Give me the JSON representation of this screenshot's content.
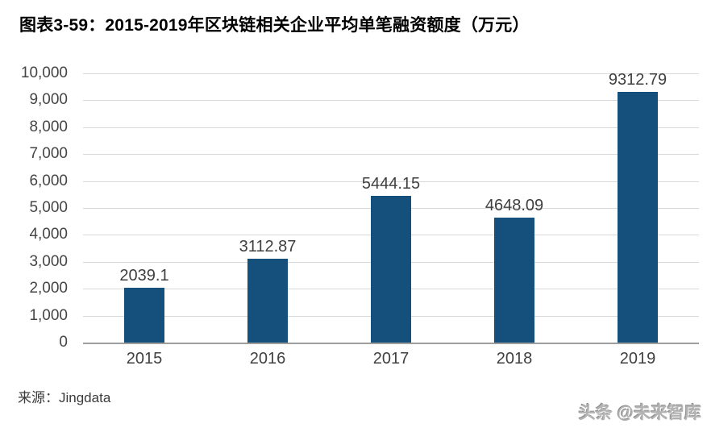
{
  "chart_data": {
    "type": "bar",
    "title": "图表3-59：2015-2019年区块链相关企业平均单笔融资额度（万元）",
    "categories": [
      "2015",
      "2016",
      "2017",
      "2018",
      "2019"
    ],
    "values": [
      2039.1,
      3112.87,
      5444.15,
      4648.09,
      9312.79
    ],
    "data_labels": [
      "2039.1",
      "3112.87",
      "5444.15",
      "4648.09",
      "9312.79"
    ],
    "xlabel": "",
    "ylabel": "",
    "ylim": [
      0,
      10000
    ],
    "ytick_step": 1000,
    "ytick_labels": [
      "0",
      "1,000",
      "2,000",
      "3,000",
      "4,000",
      "5,000",
      "6,000",
      "7,000",
      "8,000",
      "9,000",
      "10,000"
    ],
    "grid": true,
    "legend": false,
    "bar_color": "#154F7C"
  },
  "footer": {
    "source": "来源：Jingdata",
    "watermark": "头条 @未来智库"
  }
}
